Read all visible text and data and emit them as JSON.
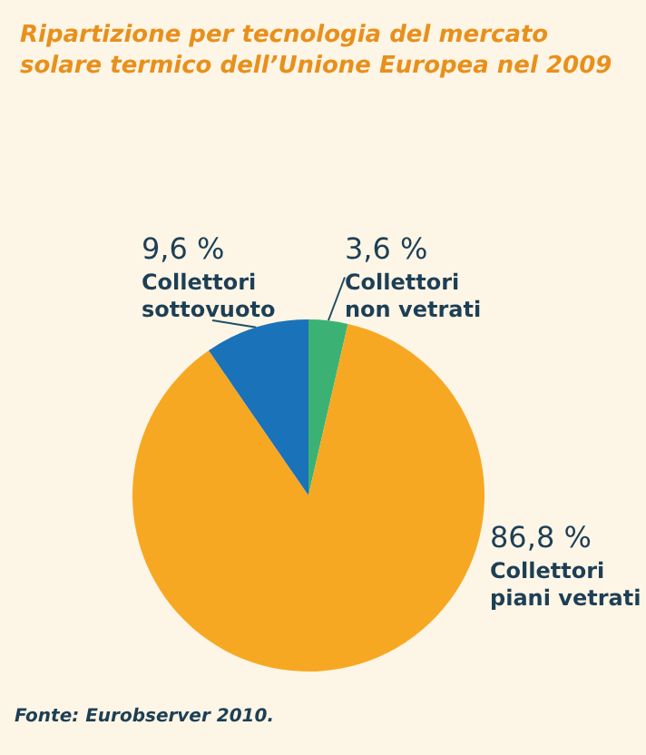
{
  "chart_data": {
    "type": "pie",
    "title": "Ripartizione per tecnologia del mercato solare termico dell’Unione Europea nel 2009",
    "categories": [
      "Collettori non vetrati",
      "Collettori piani vetrati",
      "Collettori sottovuoto"
    ],
    "values": [
      3.6,
      86.8,
      9.6
    ],
    "colors": [
      "#3bb273",
      "#f7a823",
      "#1a72b8"
    ],
    "value_labels": [
      "3,6 %",
      "86,8 %",
      "9,6 %"
    ],
    "legend": false,
    "annotations": [
      "Fonte: Eurobserver 2010."
    ]
  }
}
